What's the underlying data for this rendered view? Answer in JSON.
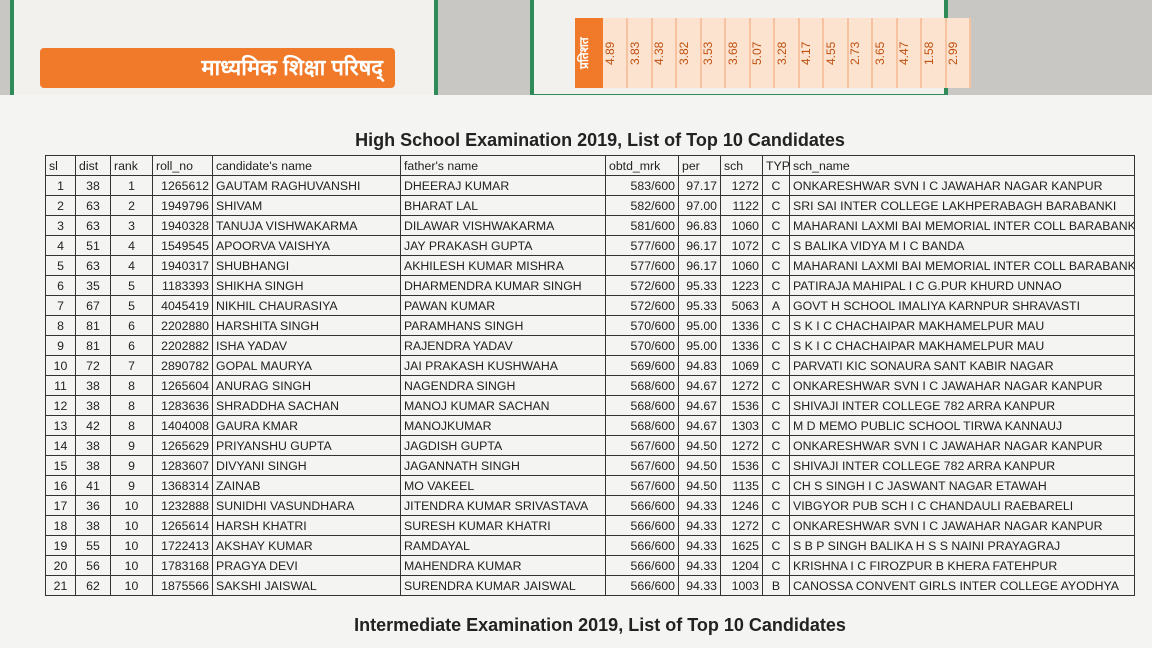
{
  "background": {
    "banner": "माध्यमिक शिक्षा परिषद्",
    "strip_label": "प्रतिशत",
    "strip_values": [
      "4.89",
      "3.83",
      "4.38",
      "3.82",
      "3.53",
      "3.68",
      "5.07",
      "3.28",
      "4.17",
      "4.55",
      "2.73",
      "3.65",
      "4.47",
      "1.58",
      "2.99"
    ]
  },
  "header": {
    "title": "High School Examination 2019, List of Top 10 Candidates"
  },
  "table": {
    "columns": [
      "sl",
      "dist",
      "rank",
      "roll_no",
      "candidate's name",
      "father's name",
      "obtd_mrk",
      "per",
      "sch",
      "TYP",
      "sch_name"
    ],
    "rows": [
      [
        "1",
        "38",
        "1",
        "1265612",
        "GAUTAM RAGHUVANSHI",
        "DHEERAJ KUMAR",
        "583/600",
        "97.17",
        "1272",
        "C",
        "ONKARESHWAR SVN I C JAWAHAR NAGAR KANPUR"
      ],
      [
        "2",
        "63",
        "2",
        "1949796",
        "SHIVAM",
        "BHARAT LAL",
        "582/600",
        "97.00",
        "1122",
        "C",
        "SRI SAI INTER COLLEGE LAKHPERABAGH BARABANKI"
      ],
      [
        "3",
        "63",
        "3",
        "1940328",
        "TANUJA VISHWAKARMA",
        "DILAWAR VISHWAKARMA",
        "581/600",
        "96.83",
        "1060",
        "C",
        "MAHARANI LAXMI BAI MEMORIAL INTER COLL BARABANKI"
      ],
      [
        "4",
        "51",
        "4",
        "1549545",
        "APOORVA VAISHYA",
        "JAY PRAKASH GUPTA",
        "577/600",
        "96.17",
        "1072",
        "C",
        "S BALIKA VIDYA M I C BANDA"
      ],
      [
        "5",
        "63",
        "4",
        "1940317",
        "SHUBHANGI",
        "AKHILESH KUMAR MISHRA",
        "577/600",
        "96.17",
        "1060",
        "C",
        "MAHARANI LAXMI BAI MEMORIAL INTER COLL BARABANKI"
      ],
      [
        "6",
        "35",
        "5",
        "1183393",
        "SHIKHA SINGH",
        "DHARMENDRA KUMAR SINGH",
        "572/600",
        "95.33",
        "1223",
        "C",
        "PATIRAJA MAHIPAL I C G.PUR KHURD UNNAO"
      ],
      [
        "7",
        "67",
        "5",
        "4045419",
        "NIKHIL CHAURASIYA",
        "PAWAN KUMAR",
        "572/600",
        "95.33",
        "5063",
        "A",
        "GOVT H SCHOOL IMALIYA KARNPUR  SHRAVASTI"
      ],
      [
        "8",
        "81",
        "6",
        "2202880",
        "HARSHITA SINGH",
        "PARAMHANS SINGH",
        "570/600",
        "95.00",
        "1336",
        "C",
        "S K I C CHACHAIPAR MAKHAMELPUR MAU"
      ],
      [
        "9",
        "81",
        "6",
        "2202882",
        "ISHA YADAV",
        "RAJENDRA YADAV",
        "570/600",
        "95.00",
        "1336",
        "C",
        "S K I C CHACHAIPAR MAKHAMELPUR MAU"
      ],
      [
        "10",
        "72",
        "7",
        "2890782",
        "GOPAL MAURYA",
        "JAI PRAKASH KUSHWAHA",
        "569/600",
        "94.83",
        "1069",
        "C",
        "PARVATI KIC SONAURA SANT KABIR NAGAR"
      ],
      [
        "11",
        "38",
        "8",
        "1265604",
        "ANURAG SINGH",
        "NAGENDRA SINGH",
        "568/600",
        "94.67",
        "1272",
        "C",
        "ONKARESHWAR SVN I C JAWAHAR NAGAR KANPUR"
      ],
      [
        "12",
        "38",
        "8",
        "1283636",
        "SHRADDHA SACHAN",
        "MANOJ KUMAR SACHAN",
        "568/600",
        "94.67",
        "1536",
        "C",
        "SHIVAJI INTER COLLEGE 782 ARRA KANPUR"
      ],
      [
        "13",
        "42",
        "8",
        "1404008",
        "GAURA KMAR",
        "MANOJKUMAR",
        "568/600",
        "94.67",
        "1303",
        "C",
        "M D MEMO PUBLIC SCHOOL TIRWA KANNAUJ"
      ],
      [
        "14",
        "38",
        "9",
        "1265629",
        "PRIYANSHU GUPTA",
        "JAGDISH GUPTA",
        "567/600",
        "94.50",
        "1272",
        "C",
        "ONKARESHWAR SVN I C JAWAHAR NAGAR KANPUR"
      ],
      [
        "15",
        "38",
        "9",
        "1283607",
        "DIVYANI SINGH",
        "JAGANNATH SINGH",
        "567/600",
        "94.50",
        "1536",
        "C",
        "SHIVAJI INTER COLLEGE 782 ARRA KANPUR"
      ],
      [
        "16",
        "41",
        "9",
        "1368314",
        "ZAINAB",
        "MO VAKEEL",
        "567/600",
        "94.50",
        "1135",
        "C",
        "CH S SINGH I C JASWANT NAGAR ETAWAH"
      ],
      [
        "17",
        "36",
        "10",
        "1232888",
        "SUNIDHI VASUNDHARA",
        "JITENDRA KUMAR SRIVASTAVA",
        "566/600",
        "94.33",
        "1246",
        "C",
        "VIBGYOR PUB SCH I C CHANDAULI RAEBARELI"
      ],
      [
        "18",
        "38",
        "10",
        "1265614",
        "HARSH KHATRI",
        "SURESH KUMAR KHATRI",
        "566/600",
        "94.33",
        "1272",
        "C",
        "ONKARESHWAR SVN I C JAWAHAR NAGAR KANPUR"
      ],
      [
        "19",
        "55",
        "10",
        "1722413",
        "AKSHAY KUMAR",
        "RAMDAYAL",
        "566/600",
        "94.33",
        "1625",
        "C",
        "S B P SINGH BALIKA H S S NAINI PRAYAGRAJ"
      ],
      [
        "20",
        "56",
        "10",
        "1783168",
        "PRAGYA DEVI",
        "MAHENDRA KUMAR",
        "566/600",
        "94.33",
        "1204",
        "C",
        "KRISHNA I C FIROZPUR B KHERA FATEHPUR"
      ],
      [
        "21",
        "62",
        "10",
        "1875566",
        "SAKSHI JAISWAL",
        "SURENDRA KUMAR JAISWAL",
        "566/600",
        "94.33",
        "1003",
        "B",
        "CANOSSA CONVENT GIRLS INTER COLLEGE  AYODHYA"
      ]
    ]
  },
  "footer": {
    "title": "Intermediate Examination 2019, List of Top 10 Candidates"
  }
}
